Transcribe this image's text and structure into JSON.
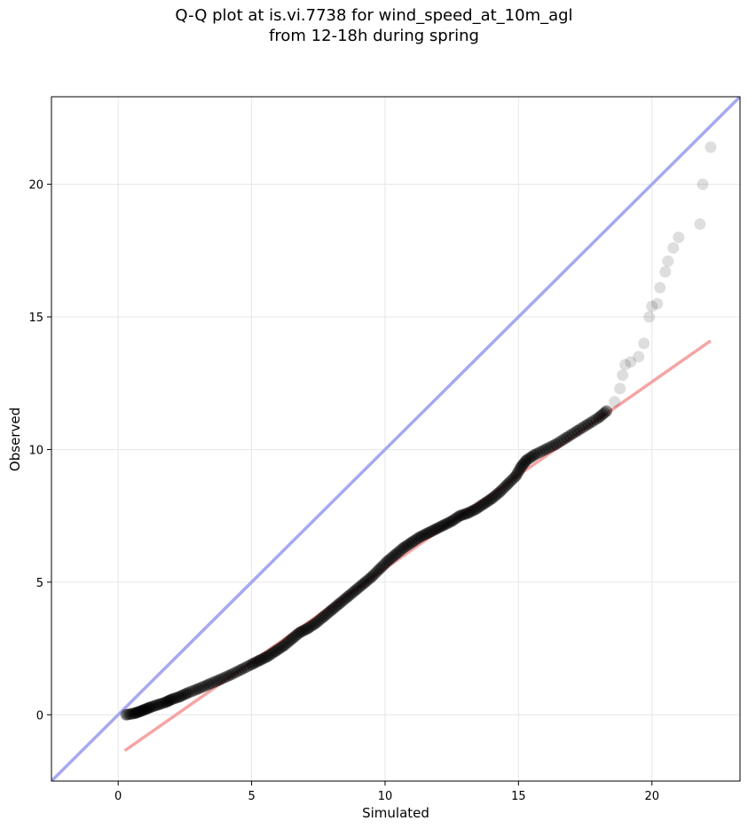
{
  "chart_data": {
    "type": "scatter",
    "title_line1": "Q-Q plot at is.vi.7738 for wind_speed_at_10m_agl",
    "title_line2": "from 12-18h during spring",
    "xlabel": "Simulated",
    "ylabel": "Observed",
    "xlim": [
      -2.5,
      23.3
    ],
    "ylim": [
      -2.5,
      23.3
    ],
    "xticks": [
      0,
      5,
      10,
      15,
      20
    ],
    "yticks": [
      0,
      5,
      10,
      15,
      20
    ],
    "grid": true,
    "colors": {
      "points": "#000000",
      "identity_line": "#a6a8f0",
      "fit_line": "#f4a5a5",
      "grid": "#e6e6e6"
    },
    "identity_line": {
      "x": [
        -2.5,
        23.3
      ],
      "y": [
        -2.5,
        23.3
      ]
    },
    "fit_line": {
      "x": [
        0.25,
        22.2
      ],
      "y": [
        -1.35,
        14.1
      ]
    },
    "points_main": {
      "x": [
        0.3,
        0.6,
        0.8,
        1.0,
        1.2,
        1.5,
        1.8,
        2.0,
        2.3,
        2.6,
        3.0,
        3.4,
        3.8,
        4.2,
        4.6,
        5.0,
        5.3,
        5.6,
        5.9,
        6.2,
        6.5,
        6.8,
        7.1,
        7.4,
        7.7,
        8.0,
        8.3,
        8.6,
        8.9,
        9.2,
        9.5,
        9.8,
        10.1,
        10.4,
        10.7,
        11.0,
        11.3,
        11.6,
        11.9,
        12.2,
        12.5,
        12.8,
        13.1,
        13.4,
        13.7,
        14.0,
        14.3,
        14.6,
        14.9,
        15.1,
        15.3,
        15.6,
        16.0,
        16.4,
        16.8,
        17.2,
        17.6,
        18.0,
        18.3
      ],
      "y": [
        0.0,
        0.05,
        0.12,
        0.2,
        0.28,
        0.38,
        0.48,
        0.58,
        0.68,
        0.82,
        0.98,
        1.15,
        1.32,
        1.5,
        1.7,
        1.9,
        2.05,
        2.2,
        2.4,
        2.6,
        2.85,
        3.1,
        3.25,
        3.45,
        3.7,
        3.95,
        4.2,
        4.45,
        4.7,
        4.95,
        5.2,
        5.5,
        5.8,
        6.05,
        6.3,
        6.5,
        6.7,
        6.85,
        7.0,
        7.15,
        7.3,
        7.5,
        7.6,
        7.75,
        7.95,
        8.15,
        8.4,
        8.7,
        9.0,
        9.35,
        9.6,
        9.8,
        10.0,
        10.2,
        10.45,
        10.7,
        10.95,
        11.2,
        11.45
      ]
    },
    "points_tail": {
      "x": [
        18.6,
        18.8,
        18.9,
        19.0,
        19.2,
        19.5,
        19.7,
        19.9,
        20.0,
        20.2,
        20.3,
        20.5,
        20.6,
        20.8,
        21.0,
        21.8,
        21.9,
        22.2
      ],
      "y": [
        11.8,
        12.3,
        12.8,
        13.2,
        13.3,
        13.5,
        14.0,
        15.0,
        15.4,
        15.5,
        16.1,
        16.7,
        17.1,
        17.6,
        18.0,
        18.5,
        20.0,
        21.4
      ]
    }
  }
}
